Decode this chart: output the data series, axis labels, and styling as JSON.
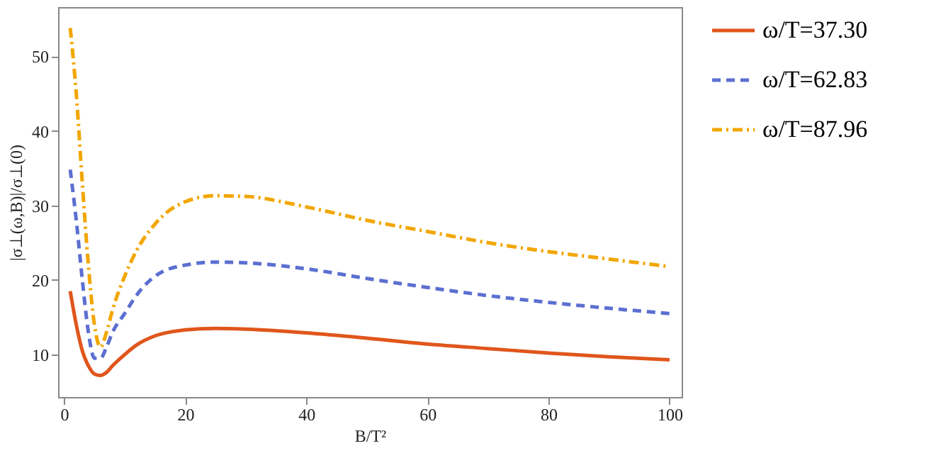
{
  "chart_data": {
    "type": "line",
    "xlabel": "B/T²",
    "ylabel": "|σ⊥(ω,B)|/σ⊥(0)",
    "xlim": [
      -1,
      102
    ],
    "ylim": [
      4.3,
      56.6
    ],
    "xticks": [
      0,
      20,
      40,
      60,
      80,
      100
    ],
    "yticks": [
      10,
      20,
      30,
      40,
      50
    ],
    "grid": false,
    "legend": "right",
    "marker": "none",
    "series": [
      {
        "name": "ω/T=37.30",
        "color": "#e0561c",
        "line_style": "solid",
        "x": [
          1,
          2,
          3,
          4,
          5,
          6,
          7,
          8,
          10,
          12,
          15,
          20,
          25,
          30,
          40,
          50,
          60,
          70,
          80,
          90,
          100
        ],
        "values": [
          18.5,
          14,
          10.5,
          8.5,
          7.4,
          7.2,
          7.6,
          8.5,
          10,
          11.3,
          12.5,
          13.3,
          13.5,
          13.4,
          12.9,
          12.2,
          11.4,
          10.8,
          10.2,
          9.7,
          9.3
        ]
      },
      {
        "name": "ω/T=62.83",
        "color": "#5c6fd1",
        "line_style": "dashed",
        "x": [
          1,
          2,
          3,
          4,
          5,
          6,
          7,
          8,
          10,
          12,
          15,
          20,
          25,
          30,
          40,
          50,
          60,
          70,
          80,
          90,
          100
        ],
        "values": [
          34.8,
          28,
          20,
          13,
          9.5,
          9.5,
          11,
          13,
          15.5,
          18,
          20.5,
          22,
          22.4,
          22.3,
          21.5,
          20.2,
          19,
          17.9,
          17,
          16.2,
          15.5
        ]
      },
      {
        "name": "ω/T=87.96",
        "color": "#f2a600",
        "line_style": "dashdot",
        "x": [
          1,
          2,
          3,
          4,
          5,
          6,
          7,
          8,
          10,
          12,
          15,
          20,
          25,
          30,
          40,
          50,
          60,
          70,
          80,
          90,
          100
        ],
        "values": [
          53.8,
          45,
          33,
          22,
          14,
          11,
          13,
          16,
          20.5,
          24,
          27.5,
          30.5,
          31.3,
          31.2,
          29.8,
          28,
          26.5,
          25,
          23.8,
          22.8,
          21.8
        ]
      }
    ]
  }
}
